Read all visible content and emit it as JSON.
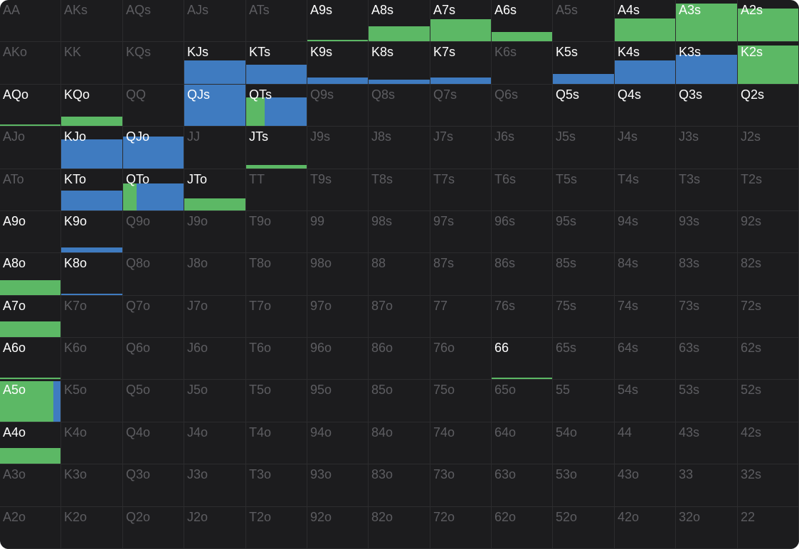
{
  "colors": {
    "background": "#1c1c1e",
    "green": "#5cb865",
    "blue": "#3f7bc0",
    "active_text": "#ffffff",
    "inactive_text": "#5d5d61"
  },
  "hands": [
    [
      {
        "label": "AA",
        "active": false,
        "segments": []
      },
      {
        "label": "AKs",
        "active": false,
        "segments": []
      },
      {
        "label": "AQs",
        "active": false,
        "segments": []
      },
      {
        "label": "AJs",
        "active": false,
        "segments": []
      },
      {
        "label": "ATs",
        "active": false,
        "segments": []
      },
      {
        "label": "A9s",
        "active": true,
        "segments": [
          {
            "action": "green",
            "width": 1,
            "height": 0.02
          }
        ]
      },
      {
        "label": "A8s",
        "active": true,
        "segments": [
          {
            "action": "green",
            "width": 1,
            "height": 0.35
          }
        ]
      },
      {
        "label": "A7s",
        "active": true,
        "segments": [
          {
            "action": "green",
            "width": 1,
            "height": 0.52
          }
        ]
      },
      {
        "label": "A6s",
        "active": true,
        "segments": [
          {
            "action": "green",
            "width": 1,
            "height": 0.22
          }
        ]
      },
      {
        "label": "A5s",
        "active": false,
        "segments": []
      },
      {
        "label": "A4s",
        "active": true,
        "segments": [
          {
            "action": "green",
            "width": 1,
            "height": 0.55
          }
        ]
      },
      {
        "label": "A3s",
        "active": true,
        "segments": [
          {
            "action": "green",
            "width": 1,
            "height": 0.9
          }
        ]
      },
      {
        "label": "A2s",
        "active": true,
        "segments": [
          {
            "action": "green",
            "width": 1,
            "height": 0.78
          }
        ]
      }
    ],
    [
      {
        "label": "AKo",
        "active": false,
        "segments": []
      },
      {
        "label": "KK",
        "active": false,
        "segments": []
      },
      {
        "label": "KQs",
        "active": false,
        "segments": []
      },
      {
        "label": "KJs",
        "active": true,
        "segments": [
          {
            "action": "blue",
            "width": 1,
            "height": 0.55
          }
        ]
      },
      {
        "label": "KTs",
        "active": true,
        "segments": [
          {
            "action": "blue",
            "width": 1,
            "height": 0.45
          }
        ]
      },
      {
        "label": "K9s",
        "active": true,
        "segments": [
          {
            "action": "blue",
            "width": 1,
            "height": 0.15
          }
        ]
      },
      {
        "label": "K8s",
        "active": true,
        "segments": [
          {
            "action": "blue",
            "width": 1,
            "height": 0.1
          }
        ]
      },
      {
        "label": "K7s",
        "active": true,
        "segments": [
          {
            "action": "blue",
            "width": 1,
            "height": 0.15
          }
        ]
      },
      {
        "label": "K6s",
        "active": false,
        "segments": []
      },
      {
        "label": "K5s",
        "active": true,
        "segments": [
          {
            "action": "blue",
            "width": 1,
            "height": 0.23
          }
        ]
      },
      {
        "label": "K4s",
        "active": true,
        "segments": [
          {
            "action": "blue",
            "width": 1,
            "height": 0.55
          }
        ]
      },
      {
        "label": "K3s",
        "active": true,
        "segments": [
          {
            "action": "blue",
            "width": 1,
            "height": 0.68
          }
        ]
      },
      {
        "label": "K2s",
        "active": true,
        "segments": [
          {
            "action": "green",
            "width": 1,
            "height": 0.9
          }
        ]
      }
    ],
    [
      {
        "label": "AQo",
        "active": true,
        "segments": [
          {
            "action": "green",
            "width": 1,
            "height": 0.02
          }
        ]
      },
      {
        "label": "KQo",
        "active": true,
        "segments": [
          {
            "action": "green",
            "width": 1,
            "height": 0.22
          }
        ]
      },
      {
        "label": "QQ",
        "active": false,
        "segments": []
      },
      {
        "label": "QJs",
        "active": true,
        "segments": [
          {
            "action": "blue",
            "width": 1,
            "height": 1
          }
        ]
      },
      {
        "label": "QTs",
        "active": true,
        "segments": [
          {
            "action": "green",
            "width": 0.3,
            "height": 0.68
          },
          {
            "action": "blue",
            "width": 0.7,
            "height": 0.68
          }
        ]
      },
      {
        "label": "Q9s",
        "active": false,
        "segments": []
      },
      {
        "label": "Q8s",
        "active": false,
        "segments": []
      },
      {
        "label": "Q7s",
        "active": false,
        "segments": []
      },
      {
        "label": "Q6s",
        "active": false,
        "segments": []
      },
      {
        "label": "Q5s",
        "active": true,
        "segments": []
      },
      {
        "label": "Q4s",
        "active": true,
        "segments": []
      },
      {
        "label": "Q3s",
        "active": true,
        "segments": []
      },
      {
        "label": "Q2s",
        "active": true,
        "segments": []
      }
    ],
    [
      {
        "label": "AJo",
        "active": false,
        "segments": []
      },
      {
        "label": "KJo",
        "active": true,
        "segments": [
          {
            "action": "blue",
            "width": 1,
            "height": 0.68
          }
        ]
      },
      {
        "label": "QJo",
        "active": true,
        "segments": [
          {
            "action": "blue",
            "width": 1,
            "height": 0.75
          }
        ]
      },
      {
        "label": "JJ",
        "active": false,
        "segments": []
      },
      {
        "label": "JTs",
        "active": true,
        "segments": [
          {
            "action": "green",
            "width": 1,
            "height": 0.08
          }
        ]
      },
      {
        "label": "J9s",
        "active": false,
        "segments": []
      },
      {
        "label": "J8s",
        "active": false,
        "segments": []
      },
      {
        "label": "J7s",
        "active": false,
        "segments": []
      },
      {
        "label": "J6s",
        "active": false,
        "segments": []
      },
      {
        "label": "J5s",
        "active": false,
        "segments": []
      },
      {
        "label": "J4s",
        "active": false,
        "segments": []
      },
      {
        "label": "J3s",
        "active": false,
        "segments": []
      },
      {
        "label": "J2s",
        "active": false,
        "segments": []
      }
    ],
    [
      {
        "label": "ATo",
        "active": false,
        "segments": []
      },
      {
        "label": "KTo",
        "active": true,
        "segments": [
          {
            "action": "blue",
            "width": 1,
            "height": 0.47
          }
        ]
      },
      {
        "label": "QTo",
        "active": true,
        "segments": [
          {
            "action": "green",
            "width": 0.22,
            "height": 0.65
          },
          {
            "action": "blue",
            "width": 0.78,
            "height": 0.65
          }
        ]
      },
      {
        "label": "JTo",
        "active": true,
        "segments": [
          {
            "action": "green",
            "width": 1,
            "height": 0.28
          }
        ]
      },
      {
        "label": "TT",
        "active": false,
        "segments": []
      },
      {
        "label": "T9s",
        "active": false,
        "segments": []
      },
      {
        "label": "T8s",
        "active": false,
        "segments": []
      },
      {
        "label": "T7s",
        "active": false,
        "segments": []
      },
      {
        "label": "T6s",
        "active": false,
        "segments": []
      },
      {
        "label": "T5s",
        "active": false,
        "segments": []
      },
      {
        "label": "T4s",
        "active": false,
        "segments": []
      },
      {
        "label": "T3s",
        "active": false,
        "segments": []
      },
      {
        "label": "T2s",
        "active": false,
        "segments": []
      }
    ],
    [
      {
        "label": "A9o",
        "active": true,
        "segments": []
      },
      {
        "label": "K9o",
        "active": true,
        "segments": [
          {
            "action": "blue",
            "width": 1,
            "height": 0.12
          }
        ]
      },
      {
        "label": "Q9o",
        "active": false,
        "segments": []
      },
      {
        "label": "J9o",
        "active": false,
        "segments": []
      },
      {
        "label": "T9o",
        "active": false,
        "segments": []
      },
      {
        "label": "99",
        "active": false,
        "segments": []
      },
      {
        "label": "98s",
        "active": false,
        "segments": []
      },
      {
        "label": "97s",
        "active": false,
        "segments": []
      },
      {
        "label": "96s",
        "active": false,
        "segments": []
      },
      {
        "label": "95s",
        "active": false,
        "segments": []
      },
      {
        "label": "94s",
        "active": false,
        "segments": []
      },
      {
        "label": "93s",
        "active": false,
        "segments": []
      },
      {
        "label": "92s",
        "active": false,
        "segments": []
      }
    ],
    [
      {
        "label": "A8o",
        "active": true,
        "segments": [
          {
            "action": "green",
            "width": 1,
            "height": 0.35
          }
        ]
      },
      {
        "label": "K8o",
        "active": true,
        "segments": [
          {
            "action": "blue",
            "width": 1,
            "height": 0.03
          }
        ]
      },
      {
        "label": "Q8o",
        "active": false,
        "segments": []
      },
      {
        "label": "J8o",
        "active": false,
        "segments": []
      },
      {
        "label": "T8o",
        "active": false,
        "segments": []
      },
      {
        "label": "98o",
        "active": false,
        "segments": []
      },
      {
        "label": "88",
        "active": false,
        "segments": []
      },
      {
        "label": "87s",
        "active": false,
        "segments": []
      },
      {
        "label": "86s",
        "active": false,
        "segments": []
      },
      {
        "label": "85s",
        "active": false,
        "segments": []
      },
      {
        "label": "84s",
        "active": false,
        "segments": []
      },
      {
        "label": "83s",
        "active": false,
        "segments": []
      },
      {
        "label": "82s",
        "active": false,
        "segments": []
      }
    ],
    [
      {
        "label": "A7o",
        "active": true,
        "segments": [
          {
            "action": "green",
            "width": 1,
            "height": 0.38
          }
        ]
      },
      {
        "label": "K7o",
        "active": false,
        "segments": []
      },
      {
        "label": "Q7o",
        "active": false,
        "segments": []
      },
      {
        "label": "J7o",
        "active": false,
        "segments": []
      },
      {
        "label": "T7o",
        "active": false,
        "segments": []
      },
      {
        "label": "97o",
        "active": false,
        "segments": []
      },
      {
        "label": "87o",
        "active": false,
        "segments": []
      },
      {
        "label": "77",
        "active": false,
        "segments": []
      },
      {
        "label": "76s",
        "active": false,
        "segments": []
      },
      {
        "label": "75s",
        "active": false,
        "segments": []
      },
      {
        "label": "74s",
        "active": false,
        "segments": []
      },
      {
        "label": "73s",
        "active": false,
        "segments": []
      },
      {
        "label": "72s",
        "active": false,
        "segments": []
      }
    ],
    [
      {
        "label": "A6o",
        "active": true,
        "segments": [
          {
            "action": "green",
            "width": 1,
            "height": 0.03
          }
        ]
      },
      {
        "label": "K6o",
        "active": false,
        "segments": []
      },
      {
        "label": "Q6o",
        "active": false,
        "segments": []
      },
      {
        "label": "J6o",
        "active": false,
        "segments": []
      },
      {
        "label": "T6o",
        "active": false,
        "segments": []
      },
      {
        "label": "96o",
        "active": false,
        "segments": []
      },
      {
        "label": "86o",
        "active": false,
        "segments": []
      },
      {
        "label": "76o",
        "active": false,
        "segments": []
      },
      {
        "label": "66",
        "active": true,
        "segments": [
          {
            "action": "green",
            "width": 1,
            "height": 0.02
          }
        ]
      },
      {
        "label": "65s",
        "active": false,
        "segments": []
      },
      {
        "label": "64s",
        "active": false,
        "segments": []
      },
      {
        "label": "63s",
        "active": false,
        "segments": []
      },
      {
        "label": "62s",
        "active": false,
        "segments": []
      }
    ],
    [
      {
        "label": "A5o",
        "active": true,
        "segments": [
          {
            "action": "green",
            "width": 0.87,
            "height": 0.95
          },
          {
            "action": "blue",
            "width": 0.13,
            "height": 0.95
          }
        ]
      },
      {
        "label": "K5o",
        "active": false,
        "segments": []
      },
      {
        "label": "Q5o",
        "active": false,
        "segments": []
      },
      {
        "label": "J5o",
        "active": false,
        "segments": []
      },
      {
        "label": "T5o",
        "active": false,
        "segments": []
      },
      {
        "label": "95o",
        "active": false,
        "segments": []
      },
      {
        "label": "85o",
        "active": false,
        "segments": []
      },
      {
        "label": "75o",
        "active": false,
        "segments": []
      },
      {
        "label": "65o",
        "active": false,
        "segments": []
      },
      {
        "label": "55",
        "active": false,
        "segments": []
      },
      {
        "label": "54s",
        "active": false,
        "segments": []
      },
      {
        "label": "53s",
        "active": false,
        "segments": []
      },
      {
        "label": "52s",
        "active": false,
        "segments": []
      }
    ],
    [
      {
        "label": "A4o",
        "active": true,
        "segments": [
          {
            "action": "green",
            "width": 1,
            "height": 0.38
          }
        ]
      },
      {
        "label": "K4o",
        "active": false,
        "segments": []
      },
      {
        "label": "Q4o",
        "active": false,
        "segments": []
      },
      {
        "label": "J4o",
        "active": false,
        "segments": []
      },
      {
        "label": "T4o",
        "active": false,
        "segments": []
      },
      {
        "label": "94o",
        "active": false,
        "segments": []
      },
      {
        "label": "84o",
        "active": false,
        "segments": []
      },
      {
        "label": "74o",
        "active": false,
        "segments": []
      },
      {
        "label": "64o",
        "active": false,
        "segments": []
      },
      {
        "label": "54o",
        "active": false,
        "segments": []
      },
      {
        "label": "44",
        "active": false,
        "segments": []
      },
      {
        "label": "43s",
        "active": false,
        "segments": []
      },
      {
        "label": "42s",
        "active": false,
        "segments": []
      }
    ],
    [
      {
        "label": "A3o",
        "active": false,
        "segments": []
      },
      {
        "label": "K3o",
        "active": false,
        "segments": []
      },
      {
        "label": "Q3o",
        "active": false,
        "segments": []
      },
      {
        "label": "J3o",
        "active": false,
        "segments": []
      },
      {
        "label": "T3o",
        "active": false,
        "segments": []
      },
      {
        "label": "93o",
        "active": false,
        "segments": []
      },
      {
        "label": "83o",
        "active": false,
        "segments": []
      },
      {
        "label": "73o",
        "active": false,
        "segments": []
      },
      {
        "label": "63o",
        "active": false,
        "segments": []
      },
      {
        "label": "53o",
        "active": false,
        "segments": []
      },
      {
        "label": "43o",
        "active": false,
        "segments": []
      },
      {
        "label": "33",
        "active": false,
        "segments": []
      },
      {
        "label": "32s",
        "active": false,
        "segments": []
      }
    ],
    [
      {
        "label": "A2o",
        "active": false,
        "segments": []
      },
      {
        "label": "K2o",
        "active": false,
        "segments": []
      },
      {
        "label": "Q2o",
        "active": false,
        "segments": []
      },
      {
        "label": "J2o",
        "active": false,
        "segments": []
      },
      {
        "label": "T2o",
        "active": false,
        "segments": []
      },
      {
        "label": "92o",
        "active": false,
        "segments": []
      },
      {
        "label": "82o",
        "active": false,
        "segments": []
      },
      {
        "label": "72o",
        "active": false,
        "segments": []
      },
      {
        "label": "62o",
        "active": false,
        "segments": []
      },
      {
        "label": "52o",
        "active": false,
        "segments": []
      },
      {
        "label": "42o",
        "active": false,
        "segments": []
      },
      {
        "label": "32o",
        "active": false,
        "segments": []
      },
      {
        "label": "22",
        "active": false,
        "segments": []
      }
    ]
  ]
}
